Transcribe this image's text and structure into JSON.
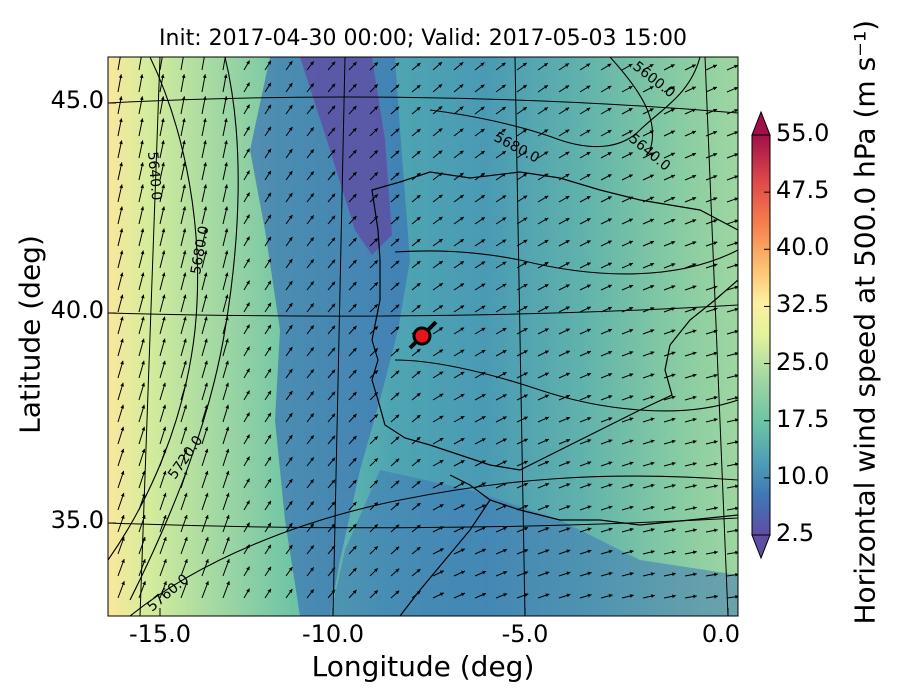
{
  "title": "Init: 2017-04-30 00:00; Valid: 2017-05-03 15:00",
  "xlabel": "Longitude (deg)",
  "ylabel": "Latitude (deg)",
  "colorbar": {
    "label": "Horizontal wind speed at 500.0 hPa (m s⁻¹)",
    "min": 2.5,
    "max": 55.0,
    "step": 2.5,
    "ticks": [
      "2.5",
      "10.0",
      "17.5",
      "25.0",
      "32.5",
      "40.0",
      "47.5",
      "55.0"
    ],
    "extend": "both"
  },
  "axes": {
    "x_ticks": [
      "-15.0",
      "-10.0",
      "-5.0",
      "0.0"
    ],
    "y_ticks": [
      "35.0",
      "40.0",
      "45.0"
    ],
    "xlim": [
      -16.0,
      0.0
    ],
    "ylim": [
      32.5,
      46.5
    ]
  },
  "contour_labels": [
    "5600.0",
    "5640.0",
    "5640.0",
    "5680.0",
    "5680.0",
    "5720.0",
    "5760.0"
  ],
  "marker": {
    "color": "#e8141c",
    "lon": -7.7,
    "lat": 39.3
  },
  "colors": {
    "map_background": "#4f9db4",
    "coastline": "#000000",
    "arrows": "#000000"
  }
}
